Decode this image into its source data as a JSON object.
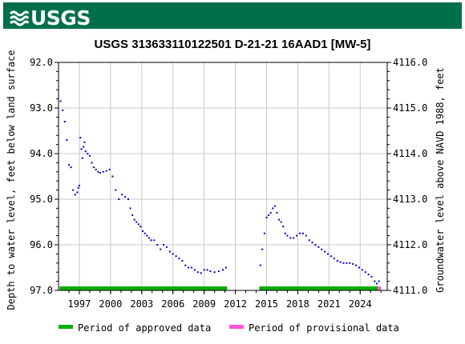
{
  "header": {
    "logo_text": "USGS",
    "logo_icon": "usgs-wave-icon"
  },
  "colors": {
    "banner": "#00704a",
    "points": "#0000cc",
    "approved": "#00b000",
    "provisional": "#ff55dd",
    "grid": "#c8c8c8"
  },
  "chart_data": {
    "type": "scatter",
    "title": "USGS 313633110122501 D-21-21 16AAD1 [MW-5]",
    "ylabel_left": "Depth to water level, feet below land surface",
    "ylabel_right": "Groundwater level above NAVD 1988, feet",
    "ylim_left": [
      92.0,
      97.0
    ],
    "ylim_right": [
      4116.0,
      4111.0
    ],
    "yticks_left": [
      "92.0",
      "93.0",
      "94.0",
      "95.0",
      "96.0",
      "97.0"
    ],
    "yticks_right": [
      "4116.0",
      "4115.0",
      "4114.0",
      "4113.0",
      "4112.0",
      "4111.0"
    ],
    "xlim": [
      1995.0,
      2026.6
    ],
    "xticks": [
      "1997",
      "2000",
      "2003",
      "2006",
      "2009",
      "2012",
      "2015",
      "2018",
      "2021",
      "2024"
    ],
    "grid": true,
    "approved_periods": [
      [
        1995.1,
        2011.2
      ],
      [
        2014.3,
        2025.7
      ]
    ],
    "provisional_periods": [
      [
        2025.7,
        2026.0
      ]
    ],
    "legend": [
      "Period of approved data",
      "Period of provisional data"
    ],
    "legend_position": "bottom",
    "series": [
      {
        "x": [
          1995.2,
          1995.4,
          1995.6,
          1995.8,
          1996.0,
          1996.2,
          1996.4,
          1996.6,
          1996.8,
          1996.9,
          1997.0,
          1997.1,
          1997.2,
          1997.3,
          1997.4,
          1997.5,
          1997.6,
          1997.8,
          1998.0,
          1998.2,
          1998.4,
          1998.6,
          1998.8,
          1999.0,
          1999.3,
          1999.6,
          1999.9,
          2000.2,
          2000.5,
          2000.8,
          2001.1,
          2001.4,
          2001.7,
          2001.9,
          2002.1,
          2002.3,
          2002.5,
          2002.7,
          2002.9,
          2003.1,
          2003.3,
          2003.5,
          2003.7,
          2003.9,
          2004.2,
          2004.5,
          2004.8,
          2005.1,
          2005.4,
          2005.7,
          2006.0,
          2006.3,
          2006.6,
          2006.9,
          2007.2,
          2007.5,
          2007.8,
          2008.1,
          2008.4,
          2008.7,
          2009.0,
          2009.3,
          2009.6,
          2010.0,
          2010.4,
          2010.8,
          2011.1
        ],
        "y": [
          92.85,
          93.05,
          93.3,
          93.7,
          94.25,
          94.3,
          94.8,
          94.9,
          94.85,
          94.75,
          94.7,
          93.65,
          93.9,
          94.1,
          93.85,
          93.75,
          93.95,
          94.0,
          94.05,
          94.2,
          94.3,
          94.35,
          94.4,
          94.42,
          94.4,
          94.38,
          94.35,
          94.5,
          94.8,
          95.0,
          94.9,
          94.95,
          95.0,
          95.2,
          95.35,
          95.45,
          95.5,
          95.55,
          95.6,
          95.7,
          95.75,
          95.8,
          95.85,
          95.9,
          95.9,
          96.0,
          96.1,
          96.0,
          96.05,
          96.15,
          96.2,
          96.25,
          96.3,
          96.35,
          96.45,
          96.5,
          96.5,
          96.55,
          96.6,
          96.62,
          96.55,
          96.55,
          96.58,
          96.6,
          96.58,
          96.55,
          96.5
        ]
      },
      {
        "x": [
          2014.4,
          2014.6,
          2014.8,
          2015.0,
          2015.2,
          2015.4,
          2015.6,
          2015.8,
          2016.0,
          2016.2,
          2016.4,
          2016.6,
          2016.8,
          2017.0,
          2017.3,
          2017.6,
          2017.9,
          2018.2,
          2018.5,
          2018.8,
          2019.1,
          2019.4,
          2019.7,
          2020.0,
          2020.3,
          2020.6,
          2020.9,
          2021.2,
          2021.5,
          2021.8,
          2022.1,
          2022.4,
          2022.7,
          2023.0,
          2023.3,
          2023.6,
          2023.9,
          2024.2,
          2024.5,
          2024.8,
          2025.1,
          2025.4,
          2025.6,
          2025.8
        ],
        "y": [
          96.45,
          96.1,
          95.75,
          95.4,
          95.35,
          95.3,
          95.2,
          95.15,
          95.3,
          95.45,
          95.5,
          95.6,
          95.75,
          95.8,
          95.85,
          95.85,
          95.8,
          95.75,
          95.75,
          95.8,
          95.9,
          95.95,
          96.0,
          96.05,
          96.1,
          96.15,
          96.2,
          96.25,
          96.3,
          96.35,
          96.38,
          96.4,
          96.4,
          96.4,
          96.42,
          96.45,
          96.5,
          96.55,
          96.6,
          96.65,
          96.7,
          96.8,
          96.85,
          96.8
        ]
      }
    ]
  }
}
